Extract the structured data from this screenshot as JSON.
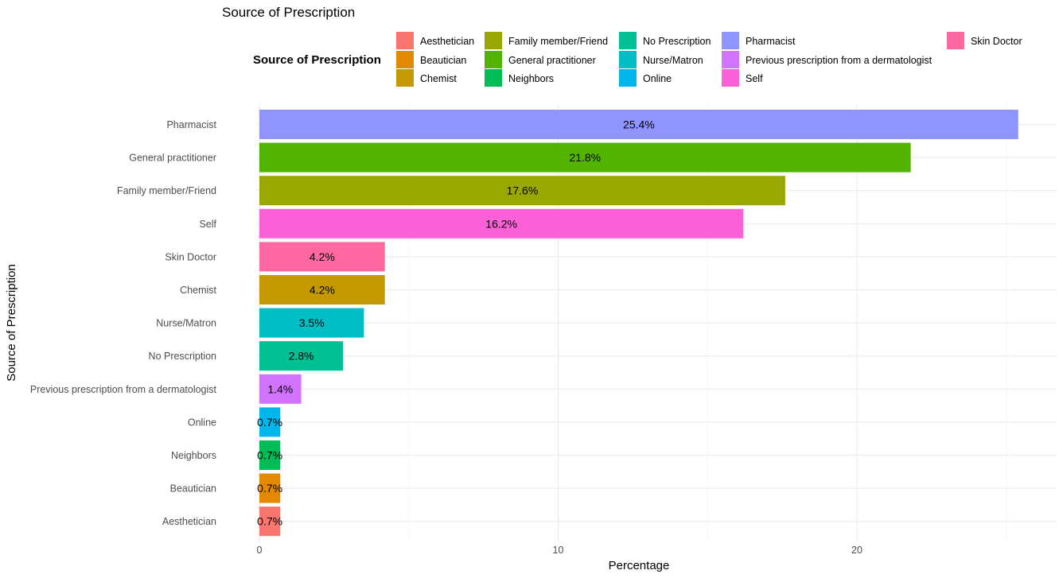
{
  "chart_data": {
    "type": "bar",
    "orientation": "horizontal",
    "title": "Source of Prescription",
    "xlabel": "Percentage",
    "ylabel": "Source of Prescription",
    "xlim": [
      0,
      26.7
    ],
    "x_ticks": [
      0,
      10,
      20
    ],
    "grid": true,
    "legend": {
      "title": "Source of Prescription",
      "placement": "top",
      "columns": [
        [
          "Aesthetician",
          "Beautician",
          "Chemist"
        ],
        [
          "Family member/Friend",
          "General practitioner",
          "Neighbors"
        ],
        [
          "No Prescription",
          "Nurse/Matron",
          "Online"
        ],
        [
          "Pharmacist",
          "Previous prescription from a dermatologist",
          "Self"
        ],
        [
          "Skin Doctor"
        ]
      ]
    },
    "categories": [
      "Pharmacist",
      "General practitioner",
      "Family member/Friend",
      "Self",
      "Skin Doctor",
      "Chemist",
      "Nurse/Matron",
      "No Prescription",
      "Previous prescription from a dermatologist",
      "Online",
      "Neighbors",
      "Beautician",
      "Aesthetician"
    ],
    "values": [
      25.4,
      21.8,
      17.6,
      16.2,
      4.2,
      4.2,
      3.5,
      2.8,
      1.4,
      0.7,
      0.7,
      0.7,
      0.7
    ],
    "labels": [
      "25.4%",
      "21.8%",
      "17.6%",
      "16.2%",
      "4.2%",
      "4.2%",
      "3.5%",
      "2.8%",
      "1.4%",
      "0.7%",
      "0.7%",
      "0.7%",
      "0.7%"
    ],
    "colors": {
      "Aesthetician": "#F8766D",
      "Beautician": "#E38900",
      "Chemist": "#C49A00",
      "Family member/Friend": "#99A800",
      "General practitioner": "#53B400",
      "Neighbors": "#00BC56",
      "No Prescription": "#00C094",
      "Nurse/Matron": "#00BFC4",
      "Online": "#00B6EB",
      "Pharmacist": "#8F94FF",
      "Previous prescription from a dermatologist": "#D173FF",
      "Self": "#FB61D7",
      "Skin Doctor": "#FF68A1"
    }
  }
}
